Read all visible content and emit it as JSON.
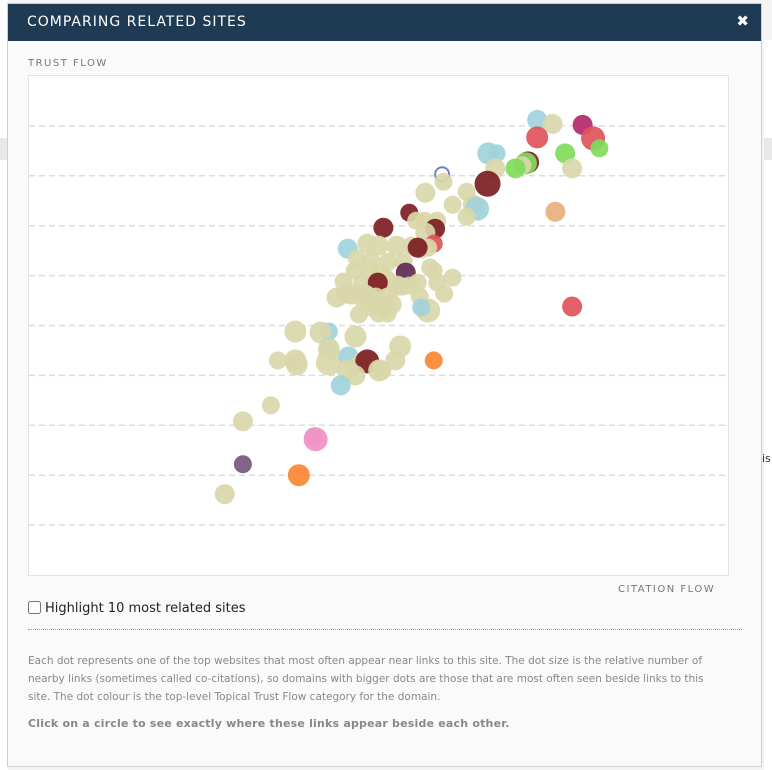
{
  "modal": {
    "title": "COMPARING RELATED SITES",
    "close_icon": "close-icon",
    "highlight_label": "Highlight 10 most related sites",
    "description": "Each dot represents one of the top websites that most often appear near links to this site. The dot size is the relative number of nearby links (sometimes called co-citations), so domains with bigger dots are those that are most often seen beside links to this site. The dot colour is the top-level Topical Trust Flow category for the domain.",
    "hint": "Click on a circle to see exactly where these links appear beside each other."
  },
  "background": {
    "right_text": "is"
  },
  "chart_data": {
    "type": "scatter",
    "xlabel": "CITATION FLOW",
    "ylabel": "TRUST FLOW",
    "xlim": [
      0,
      100
    ],
    "ylim": [
      0,
      100
    ],
    "grid": "horizontal-dashed",
    "colors": {
      "beige": "#d9d7a9",
      "teal": "#9fd3db",
      "maroon": "#7d1d22",
      "red": "#e0535a",
      "green": "#7fdc5a",
      "orange": "#fb8732",
      "purple": "#5e2a55",
      "pink": "#f48ec4",
      "peach": "#e8b07e",
      "mauve": "#b3286a",
      "lavender": "#75577f",
      "blue-outline": "#6a86c1"
    },
    "points": [
      {
        "x": 72.7,
        "y": 91.2,
        "size": 10,
        "color": "teal"
      },
      {
        "x": 74.9,
        "y": 90.4,
        "size": 10,
        "color": "beige"
      },
      {
        "x": 79.2,
        "y": 90.2,
        "size": 10,
        "color": "mauve"
      },
      {
        "x": 72.7,
        "y": 87.7,
        "size": 11,
        "color": "red"
      },
      {
        "x": 80.7,
        "y": 87.5,
        "size": 12,
        "color": "red"
      },
      {
        "x": 81.6,
        "y": 85.5,
        "size": 9,
        "color": "green"
      },
      {
        "x": 65.7,
        "y": 84.5,
        "size": 11,
        "color": "teal"
      },
      {
        "x": 66.9,
        "y": 84.5,
        "size": 9,
        "color": "teal"
      },
      {
        "x": 76.7,
        "y": 84.5,
        "size": 10,
        "color": "green"
      },
      {
        "x": 71.4,
        "y": 82.7,
        "size": 11,
        "color": "maroon"
      },
      {
        "x": 71.1,
        "y": 82.5,
        "size": 11,
        "color": "green"
      },
      {
        "x": 70.6,
        "y": 82.1,
        "size": 9,
        "color": "beige"
      },
      {
        "x": 66.7,
        "y": 81.5,
        "size": 10,
        "color": "beige"
      },
      {
        "x": 69.6,
        "y": 81.5,
        "size": 10,
        "color": "green"
      },
      {
        "x": 77.7,
        "y": 81.5,
        "size": 10,
        "color": "beige"
      },
      {
        "x": 59.1,
        "y": 80.3,
        "size": 7,
        "color": "blue-outline"
      },
      {
        "x": 59.3,
        "y": 78.8,
        "size": 9,
        "color": "beige"
      },
      {
        "x": 65.6,
        "y": 78.4,
        "size": 13,
        "color": "maroon"
      },
      {
        "x": 56.7,
        "y": 76.6,
        "size": 10,
        "color": "beige"
      },
      {
        "x": 62.6,
        "y": 76.8,
        "size": 9,
        "color": "beige"
      },
      {
        "x": 60.6,
        "y": 74.2,
        "size": 9,
        "color": "beige"
      },
      {
        "x": 63.5,
        "y": 74.2,
        "size": 10,
        "color": "beige"
      },
      {
        "x": 64.1,
        "y": 73.4,
        "size": 12,
        "color": "teal"
      },
      {
        "x": 54.4,
        "y": 72.6,
        "size": 9,
        "color": "maroon"
      },
      {
        "x": 55.4,
        "y": 71.0,
        "size": 9,
        "color": "beige"
      },
      {
        "x": 56.6,
        "y": 71.0,
        "size": 9,
        "color": "beige"
      },
      {
        "x": 58.4,
        "y": 71.0,
        "size": 9,
        "color": "beige"
      },
      {
        "x": 62.6,
        "y": 71.8,
        "size": 9,
        "color": "beige"
      },
      {
        "x": 75.3,
        "y": 72.8,
        "size": 10,
        "color": "peach"
      },
      {
        "x": 50.7,
        "y": 69.6,
        "size": 10,
        "color": "maroon"
      },
      {
        "x": 58.1,
        "y": 69.4,
        "size": 10,
        "color": "maroon"
      },
      {
        "x": 56.7,
        "y": 68.6,
        "size": 10,
        "color": "beige"
      },
      {
        "x": 57.9,
        "y": 66.4,
        "size": 9,
        "color": "red"
      },
      {
        "x": 45.6,
        "y": 65.4,
        "size": 10,
        "color": "teal"
      },
      {
        "x": 48.4,
        "y": 66.4,
        "size": 10,
        "color": "beige"
      },
      {
        "x": 50.0,
        "y": 66.0,
        "size": 10,
        "color": "beige"
      },
      {
        "x": 52.6,
        "y": 66.0,
        "size": 10,
        "color": "beige"
      },
      {
        "x": 54.7,
        "y": 66.0,
        "size": 9,
        "color": "beige"
      },
      {
        "x": 56.1,
        "y": 65.4,
        "size": 10,
        "color": "beige"
      },
      {
        "x": 57.1,
        "y": 65.6,
        "size": 9,
        "color": "beige"
      },
      {
        "x": 55.6,
        "y": 65.6,
        "size": 10,
        "color": "maroon"
      },
      {
        "x": 46.9,
        "y": 63.4,
        "size": 9,
        "color": "beige"
      },
      {
        "x": 49.0,
        "y": 63.0,
        "size": 9,
        "color": "beige"
      },
      {
        "x": 51.4,
        "y": 62.8,
        "size": 9,
        "color": "beige"
      },
      {
        "x": 53.6,
        "y": 62.8,
        "size": 9,
        "color": "beige"
      },
      {
        "x": 57.4,
        "y": 61.6,
        "size": 9,
        "color": "beige"
      },
      {
        "x": 53.9,
        "y": 60.6,
        "size": 10,
        "color": "purple"
      },
      {
        "x": 57.9,
        "y": 61.0,
        "size": 9,
        "color": "beige"
      },
      {
        "x": 46.6,
        "y": 61.0,
        "size": 9,
        "color": "beige"
      },
      {
        "x": 48.7,
        "y": 60.8,
        "size": 10,
        "color": "beige"
      },
      {
        "x": 50.3,
        "y": 60.4,
        "size": 10,
        "color": "beige"
      },
      {
        "x": 51.1,
        "y": 59.2,
        "size": 10,
        "color": "beige"
      },
      {
        "x": 60.6,
        "y": 59.6,
        "size": 9,
        "color": "beige"
      },
      {
        "x": 45.0,
        "y": 58.8,
        "size": 9,
        "color": "beige"
      },
      {
        "x": 47.6,
        "y": 58.4,
        "size": 9,
        "color": "beige"
      },
      {
        "x": 49.6,
        "y": 58.2,
        "size": 10,
        "color": "beige"
      },
      {
        "x": 52.7,
        "y": 58.0,
        "size": 10,
        "color": "beige"
      },
      {
        "x": 53.4,
        "y": 57.8,
        "size": 9,
        "color": "beige"
      },
      {
        "x": 54.4,
        "y": 58.0,
        "size": 9,
        "color": "beige"
      },
      {
        "x": 55.6,
        "y": 58.6,
        "size": 9,
        "color": "beige"
      },
      {
        "x": 58.4,
        "y": 58.6,
        "size": 9,
        "color": "beige"
      },
      {
        "x": 49.9,
        "y": 58.6,
        "size": 10,
        "color": "maroon"
      },
      {
        "x": 45.3,
        "y": 56.4,
        "size": 10,
        "color": "beige"
      },
      {
        "x": 44.0,
        "y": 55.6,
        "size": 10,
        "color": "beige"
      },
      {
        "x": 46.1,
        "y": 56.2,
        "size": 10,
        "color": "beige"
      },
      {
        "x": 48.1,
        "y": 56.2,
        "size": 10,
        "color": "beige"
      },
      {
        "x": 49.6,
        "y": 55.6,
        "size": 10,
        "color": "beige"
      },
      {
        "x": 51.3,
        "y": 55.6,
        "size": 10,
        "color": "beige"
      },
      {
        "x": 48.4,
        "y": 55.2,
        "size": 13,
        "color": "beige"
      },
      {
        "x": 49.1,
        "y": 53.8,
        "size": 10,
        "color": "beige"
      },
      {
        "x": 51.9,
        "y": 54.2,
        "size": 10,
        "color": "beige"
      },
      {
        "x": 55.9,
        "y": 55.8,
        "size": 9,
        "color": "beige"
      },
      {
        "x": 57.1,
        "y": 53.0,
        "size": 12,
        "color": "beige"
      },
      {
        "x": 59.4,
        "y": 56.4,
        "size": 9,
        "color": "beige"
      },
      {
        "x": 56.1,
        "y": 53.6,
        "size": 9,
        "color": "teal"
      },
      {
        "x": 77.7,
        "y": 53.8,
        "size": 10,
        "color": "red"
      },
      {
        "x": 47.2,
        "y": 52.2,
        "size": 9,
        "color": "beige"
      },
      {
        "x": 50.0,
        "y": 52.4,
        "size": 9,
        "color": "beige"
      },
      {
        "x": 51.3,
        "y": 52.4,
        "size": 9,
        "color": "beige"
      },
      {
        "x": 42.9,
        "y": 48.8,
        "size": 9,
        "color": "teal"
      },
      {
        "x": 38.1,
        "y": 48.8,
        "size": 11,
        "color": "beige"
      },
      {
        "x": 41.7,
        "y": 48.6,
        "size": 11,
        "color": "beige"
      },
      {
        "x": 46.7,
        "y": 47.8,
        "size": 11,
        "color": "beige"
      },
      {
        "x": 42.9,
        "y": 45.8,
        "size": 9,
        "color": "teal"
      },
      {
        "x": 42.9,
        "y": 45.2,
        "size": 11,
        "color": "beige"
      },
      {
        "x": 35.6,
        "y": 43.0,
        "size": 9,
        "color": "beige"
      },
      {
        "x": 38.1,
        "y": 43.0,
        "size": 11,
        "color": "beige"
      },
      {
        "x": 38.3,
        "y": 42.2,
        "size": 11,
        "color": "beige"
      },
      {
        "x": 42.9,
        "y": 42.6,
        "size": 13,
        "color": "beige"
      },
      {
        "x": 45.7,
        "y": 43.8,
        "size": 10,
        "color": "teal"
      },
      {
        "x": 47.6,
        "y": 42.6,
        "size": 10,
        "color": "beige"
      },
      {
        "x": 48.4,
        "y": 42.8,
        "size": 12,
        "color": "maroon"
      },
      {
        "x": 45.6,
        "y": 41.0,
        "size": 11,
        "color": "beige"
      },
      {
        "x": 46.7,
        "y": 40.0,
        "size": 10,
        "color": "beige"
      },
      {
        "x": 50.4,
        "y": 41.0,
        "size": 10,
        "color": "beige"
      },
      {
        "x": 52.4,
        "y": 43.0,
        "size": 10,
        "color": "beige"
      },
      {
        "x": 53.1,
        "y": 45.8,
        "size": 11,
        "color": "beige"
      },
      {
        "x": 57.9,
        "y": 43.0,
        "size": 9,
        "color": "orange"
      },
      {
        "x": 50.1,
        "y": 41.0,
        "size": 11,
        "color": "beige"
      },
      {
        "x": 44.6,
        "y": 38.0,
        "size": 10,
        "color": "teal"
      },
      {
        "x": 34.6,
        "y": 34.0,
        "size": 9,
        "color": "beige"
      },
      {
        "x": 30.6,
        "y": 30.8,
        "size": 10,
        "color": "beige"
      },
      {
        "x": 40.7,
        "y": 27.8,
        "size": 9,
        "color": "teal"
      },
      {
        "x": 41.0,
        "y": 27.2,
        "size": 12,
        "color": "pink"
      },
      {
        "x": 30.6,
        "y": 22.2,
        "size": 9,
        "color": "lavender"
      },
      {
        "x": 38.6,
        "y": 20.0,
        "size": 11,
        "color": "orange"
      },
      {
        "x": 28.0,
        "y": 16.2,
        "size": 10,
        "color": "beige"
      }
    ]
  }
}
